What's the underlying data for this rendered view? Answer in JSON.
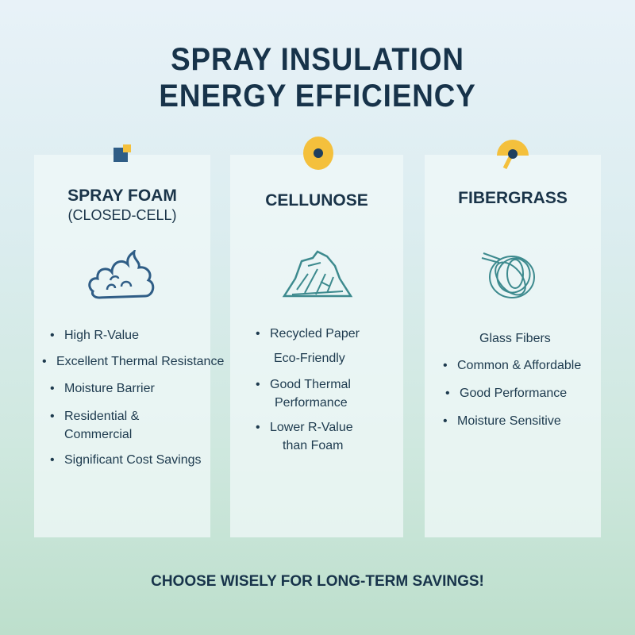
{
  "title": {
    "line1": "SPRAY INSULATION",
    "line2": "ENERGY EFFICIENCY"
  },
  "colors": {
    "text": "#1a3449",
    "accent_yellow": "#f4c03c",
    "accent_blue": "#2f5d86",
    "icon_teal": "#3d8a8e"
  },
  "cards": [
    {
      "title": "SPRAY FOAM",
      "subtitle": "(CLOSED-CELL)",
      "icon": "foam-cloud-icon",
      "badge": "square-badge-icon",
      "items": [
        {
          "text": "High R-Value",
          "bullet": true
        },
        {
          "text": "Excellent Thermal Resistance",
          "bullet": true
        },
        {
          "text": "Moisture Barrier",
          "bullet": true
        },
        {
          "text": "Residential &",
          "text2": "Commercial",
          "bullet": true
        },
        {
          "text": "Significant Cost Savings",
          "bullet": true
        }
      ]
    },
    {
      "title": "CELLUNOSE",
      "icon": "cellulose-pile-icon",
      "badge": "circle-badge-icon",
      "items": [
        {
          "text": "Recycled Paper",
          "bullet": true
        },
        {
          "text": "Eco-Friendly",
          "bullet": false
        },
        {
          "text": "Good Thermal",
          "text2": "Performance",
          "bullet": true
        },
        {
          "text": "Lower R-Value",
          "text2": "than Foam",
          "bullet": true
        }
      ]
    },
    {
      "title": "FIBERGRASS",
      "icon": "fiber-tangle-icon",
      "badge": "gauge-badge-icon",
      "items": [
        {
          "text": "Glass Fibers",
          "bullet": false
        },
        {
          "text": "Common & Affordable",
          "bullet": true
        },
        {
          "text": "Good Performance",
          "bullet": true
        },
        {
          "text": "Moisture Sensitive",
          "bullet": true
        }
      ]
    }
  ],
  "bullet_char": "•",
  "footer": "CHOOSE WISELY FOR LONG-TERM SAVINGS!"
}
